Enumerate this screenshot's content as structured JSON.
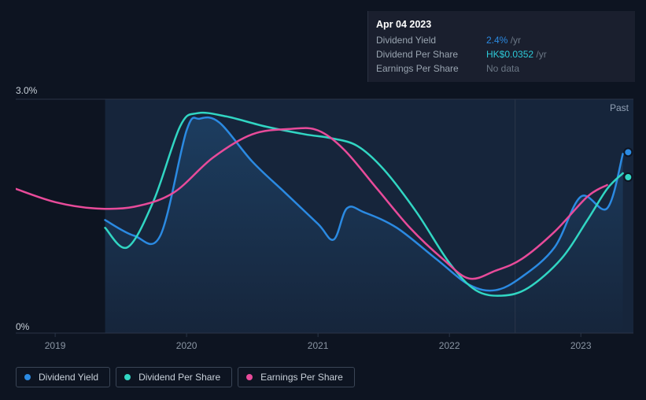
{
  "tooltip": {
    "date": "Apr 04 2023",
    "rows": [
      {
        "label": "Dividend Yield",
        "value": "2.4%",
        "unit": "/yr",
        "color": "#2b8ae2"
      },
      {
        "label": "Dividend Per Share",
        "value": "HK$0.0352",
        "unit": "/yr",
        "color": "#2dc9d7"
      },
      {
        "label": "Earnings Per Share",
        "value": "No data",
        "unit": "",
        "color": "#6b7785"
      }
    ]
  },
  "chart": {
    "type": "line",
    "background_color": "#0d1421",
    "text_color": "#c8d0d9",
    "grid_color": "#2a3548",
    "past_label": "Past",
    "shaded_region": {
      "x_start": 145,
      "x_end": 785,
      "fill": "rgba(40,70,110,0.35)"
    },
    "vertical_marker": {
      "x": 610,
      "color": "#2a3548"
    },
    "yaxis": {
      "min": 0,
      "max": 3.0,
      "top_label": "3.0%",
      "bottom_label": "0%",
      "label_fontsize": 12
    },
    "xaxis": {
      "min": 2018.7,
      "max": 2023.4,
      "ticks": [
        {
          "value": 2019,
          "label": "2019"
        },
        {
          "value": 2020,
          "label": "2020"
        },
        {
          "value": 2021,
          "label": "2021"
        },
        {
          "value": 2022,
          "label": "2022"
        },
        {
          "value": 2023,
          "label": "2023"
        }
      ],
      "label_fontsize": 12
    },
    "series": [
      {
        "name": "Dividend Yield",
        "color": "#2b8ae2",
        "stroke_width": 2.5,
        "area_fill": true,
        "area_gradient_top": "rgba(36,90,140,0.45)",
        "area_gradient_bottom": "rgba(36,90,140,0.00)",
        "points": [
          [
            2019.38,
            1.45
          ],
          [
            2019.6,
            1.25
          ],
          [
            2019.8,
            1.25
          ],
          [
            2020.0,
            2.6
          ],
          [
            2020.1,
            2.75
          ],
          [
            2020.25,
            2.7
          ],
          [
            2020.5,
            2.2
          ],
          [
            2020.75,
            1.8
          ],
          [
            2021.0,
            1.4
          ],
          [
            2021.12,
            1.2
          ],
          [
            2021.22,
            1.6
          ],
          [
            2021.35,
            1.55
          ],
          [
            2021.6,
            1.35
          ],
          [
            2021.9,
            0.95
          ],
          [
            2022.15,
            0.62
          ],
          [
            2022.35,
            0.55
          ],
          [
            2022.55,
            0.72
          ],
          [
            2022.8,
            1.1
          ],
          [
            2023.0,
            1.75
          ],
          [
            2023.2,
            1.6
          ],
          [
            2023.32,
            2.3
          ]
        ]
      },
      {
        "name": "Dividend Per Share",
        "color": "#31d6c3",
        "stroke_width": 2.5,
        "area_fill": false,
        "points": [
          [
            2019.38,
            1.35
          ],
          [
            2019.55,
            1.1
          ],
          [
            2019.75,
            1.7
          ],
          [
            2019.95,
            2.65
          ],
          [
            2020.08,
            2.82
          ],
          [
            2020.3,
            2.78
          ],
          [
            2020.6,
            2.65
          ],
          [
            2020.9,
            2.55
          ],
          [
            2021.1,
            2.5
          ],
          [
            2021.3,
            2.4
          ],
          [
            2021.5,
            2.1
          ],
          [
            2021.75,
            1.55
          ],
          [
            2022.0,
            0.9
          ],
          [
            2022.2,
            0.55
          ],
          [
            2022.4,
            0.48
          ],
          [
            2022.6,
            0.58
          ],
          [
            2022.85,
            0.95
          ],
          [
            2023.05,
            1.45
          ],
          [
            2023.2,
            1.85
          ],
          [
            2023.32,
            2.05
          ]
        ]
      },
      {
        "name": "Earnings Per Share",
        "color": "#e84b9a",
        "stroke_width": 2.5,
        "area_fill": false,
        "points": [
          [
            2018.7,
            1.85
          ],
          [
            2019.0,
            1.68
          ],
          [
            2019.3,
            1.6
          ],
          [
            2019.6,
            1.62
          ],
          [
            2019.9,
            1.8
          ],
          [
            2020.2,
            2.25
          ],
          [
            2020.5,
            2.55
          ],
          [
            2020.8,
            2.62
          ],
          [
            2021.0,
            2.6
          ],
          [
            2021.2,
            2.35
          ],
          [
            2021.45,
            1.85
          ],
          [
            2021.7,
            1.35
          ],
          [
            2021.95,
            0.95
          ],
          [
            2022.15,
            0.7
          ],
          [
            2022.35,
            0.8
          ],
          [
            2022.55,
            0.95
          ],
          [
            2022.8,
            1.3
          ],
          [
            2023.05,
            1.75
          ],
          [
            2023.2,
            1.9
          ]
        ]
      }
    ],
    "end_markers": [
      {
        "color": "#2b8ae2",
        "x": 2023.36,
        "y": 2.32
      },
      {
        "color": "#31d6c3",
        "x": 2023.36,
        "y": 2.0
      }
    ]
  },
  "legend": {
    "border_color": "#3a4556",
    "text_color": "#c8d0d9",
    "fontsize": 12,
    "items": [
      {
        "label": "Dividend Yield",
        "color": "#2b8ae2"
      },
      {
        "label": "Dividend Per Share",
        "color": "#31d6c3"
      },
      {
        "label": "Earnings Per Share",
        "color": "#e84b9a"
      }
    ]
  }
}
